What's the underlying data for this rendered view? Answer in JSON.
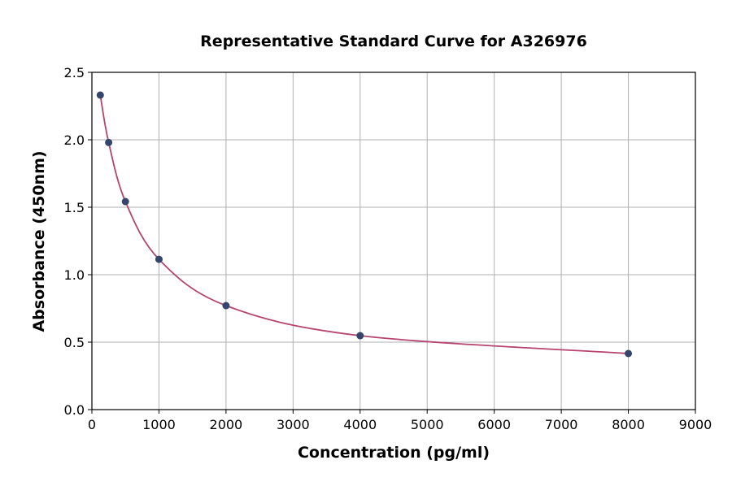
{
  "chart_data": {
    "type": "scatter",
    "title": "Representative Standard Curve for A326976",
    "xlabel": "Concentration (pg/ml)",
    "ylabel": "Absorbance (450nm)",
    "xlim": [
      0,
      9000
    ],
    "ylim": [
      0,
      2.5
    ],
    "xticks": [
      "0",
      "1000",
      "2000",
      "3000",
      "4000",
      "5000",
      "6000",
      "7000",
      "8000",
      "9000"
    ],
    "yticks": [
      "0.0",
      "0.5",
      "1.0",
      "1.5",
      "2.0",
      "2.5"
    ],
    "grid": true,
    "series": [
      {
        "x": [
          125,
          250,
          500,
          1000,
          2000,
          4000,
          8000
        ],
        "y": [
          2.331,
          1.98,
          1.542,
          1.114,
          0.771,
          0.548,
          0.416
        ]
      }
    ],
    "fit_curve": true,
    "colors": {
      "points": "#34466b",
      "curve": "#b5446e",
      "grid": "#b0b0b0"
    }
  }
}
